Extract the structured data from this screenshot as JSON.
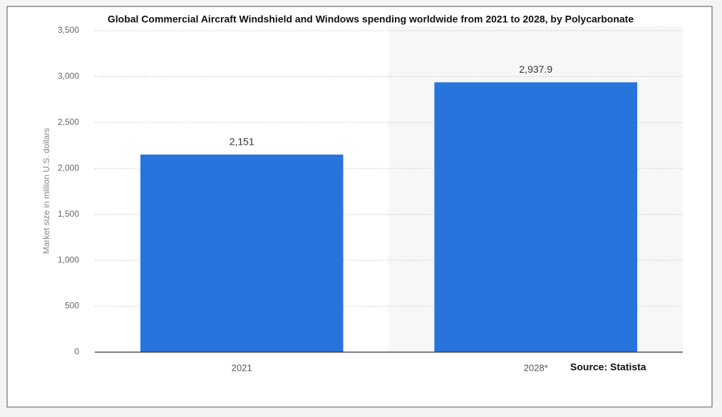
{
  "chart_data": {
    "type": "bar",
    "title": "Global Commercial Aircraft Windshield and Windows spending worldwide from 2021 to 2028, by Polycarbonate",
    "y_label": "Market size in million U.S. dollars",
    "source": "Source: Statista",
    "categories": [
      "2021",
      "2028*"
    ],
    "values": [
      2151,
      2937.9
    ],
    "value_labels": [
      "2,151",
      "2,937.9"
    ],
    "color": "#2874dd",
    "ylim": [
      0,
      3500
    ],
    "yticks": [
      0,
      500,
      {
        "value": 1000,
        "label": "1,000"
      },
      {
        "value": 1500,
        "label": "1,500"
      },
      {
        "value": 2000,
        "label": "2,000"
      },
      {
        "value": 2500,
        "label": "2,500"
      },
      {
        "value": 3000,
        "label": "3,000"
      },
      {
        "value": 3500,
        "label": "3,500"
      }
    ],
    "grid": true
  }
}
